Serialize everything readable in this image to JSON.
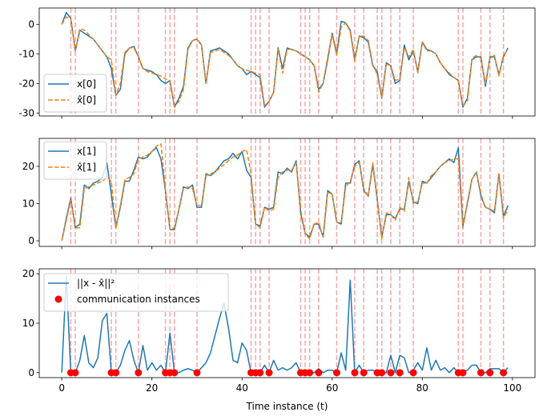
{
  "chart_data": [
    {
      "type": "line",
      "panel": "top",
      "xlim": [
        -5,
        105
      ],
      "ylim": [
        -31,
        5.5
      ],
      "yticks": [
        0,
        -10,
        -20,
        -30
      ],
      "xticks": [
        0,
        20,
        40,
        60,
        80,
        100
      ],
      "show_xticklabels": false,
      "legend": "lower-left",
      "series": [
        {
          "name": "x[0]",
          "style": "solid",
          "color": "#1f77b4",
          "x": [
            0,
            1,
            2,
            3,
            4,
            5,
            6,
            7,
            8,
            9,
            10,
            11,
            12,
            13,
            14,
            15,
            16,
            17,
            18,
            19,
            20,
            21,
            22,
            23,
            24,
            25,
            26,
            27,
            28,
            29,
            30,
            31,
            32,
            33,
            34,
            35,
            36,
            37,
            38,
            39,
            40,
            41,
            42,
            43,
            44,
            45,
            46,
            47,
            48,
            49,
            50,
            51,
            52,
            53,
            54,
            55,
            56,
            57,
            58,
            59,
            60,
            61,
            62,
            63,
            64,
            65,
            66,
            67,
            68,
            69,
            70,
            71,
            72,
            73,
            74,
            75,
            76,
            77,
            78,
            79,
            80,
            81,
            82,
            83,
            84,
            85,
            86,
            87,
            88,
            89,
            90,
            91,
            92,
            93,
            94,
            95,
            96,
            97,
            98,
            99
          ],
          "values": [
            0,
            4,
            2,
            -9,
            -2,
            -3,
            -4,
            -5,
            -7,
            -9,
            -11,
            -15,
            -24,
            -22,
            -10,
            -8,
            -7.5,
            -11,
            -15,
            -15.5,
            -16,
            -17,
            -19,
            -20,
            -19,
            -28,
            -25,
            -21,
            -8,
            -5.5,
            -5,
            -7,
            -20,
            -9,
            -8.5,
            -8,
            -9,
            -10,
            -12,
            -14,
            -15,
            -17,
            -16,
            -17,
            -18,
            -28,
            -26,
            -23,
            -8,
            -15,
            -8,
            -8.5,
            -9,
            -10,
            -11,
            -12,
            -14,
            -22,
            -20,
            -12,
            -3,
            -10,
            1,
            0.5,
            -2,
            -12,
            -4,
            -4.5,
            -6,
            -14,
            -16,
            -25,
            -13,
            -14,
            -20,
            -19,
            -7,
            -12,
            -9,
            -16,
            -6,
            -8.5,
            -9,
            -10,
            -13,
            -15,
            -17,
            -18,
            -19,
            -28,
            -25,
            -12,
            -11,
            -11,
            -21,
            -11,
            -11,
            -17,
            -11,
            -8
          ]
        },
        {
          "name": "x̂[0]",
          "style": "dashed",
          "color": "#ff7f0e",
          "x": [
            0,
            1,
            2,
            3,
            4,
            5,
            6,
            7,
            8,
            9,
            10,
            11,
            12,
            13,
            14,
            15,
            16,
            17,
            18,
            19,
            20,
            21,
            22,
            23,
            24,
            25,
            26,
            27,
            28,
            29,
            30,
            31,
            32,
            33,
            34,
            35,
            36,
            37,
            38,
            39,
            40,
            41,
            42,
            43,
            44,
            45,
            46,
            47,
            48,
            49,
            50,
            51,
            52,
            53,
            54,
            55,
            56,
            57,
            58,
            59,
            60,
            61,
            62,
            63,
            64,
            65,
            66,
            67,
            68,
            69,
            70,
            71,
            72,
            73,
            74,
            75,
            76,
            77,
            78,
            79,
            80,
            81,
            82,
            83,
            84,
            85,
            86,
            87,
            88,
            89,
            90,
            91,
            92,
            93,
            94,
            95,
            96,
            97,
            98,
            99
          ],
          "values": [
            0,
            2.5,
            2,
            -9,
            -1.5,
            -2,
            -3.5,
            -5,
            -7,
            -9,
            -11,
            -12,
            -24,
            -20,
            -9.5,
            -8,
            -8,
            -11,
            -15,
            -16,
            -16.5,
            -17,
            -17.5,
            -18.5,
            -19,
            -28,
            -26,
            -22,
            -8.5,
            -5.5,
            -5,
            -7,
            -20,
            -9.5,
            -9,
            -8.5,
            -9.5,
            -10.5,
            -12,
            -14,
            -15,
            -15.5,
            -16,
            -16.5,
            -17,
            -27.5,
            -26,
            -23,
            -8.5,
            -16.5,
            -8.5,
            -8.5,
            -9,
            -10,
            -11,
            -12,
            -14,
            -23,
            -20,
            -11,
            -3.5,
            -10.5,
            -1,
            0.5,
            -2.5,
            -12.5,
            -4,
            -4,
            -5.5,
            -13.5,
            -17,
            -25,
            -13.5,
            -14,
            -19,
            -18.5,
            -8,
            -11,
            -8.5,
            -16.5,
            -6,
            -9,
            -9,
            -10,
            -13,
            -15,
            -16.5,
            -18,
            -19,
            -27.5,
            -26,
            -11.5,
            -10.5,
            -11.5,
            -20,
            -11.5,
            -10.5,
            -17.5,
            -10.5,
            -8.5
          ]
        }
      ]
    },
    {
      "type": "line",
      "panel": "middle",
      "xlim": [
        -5,
        105
      ],
      "ylim": [
        -1.5,
        27.5
      ],
      "yticks": [
        0,
        10,
        20
      ],
      "xticks": [
        0,
        20,
        40,
        60,
        80,
        100
      ],
      "show_xticklabels": false,
      "legend": "top-left",
      "series": [
        {
          "name": "x[1]",
          "style": "solid",
          "color": "#1f77b4",
          "x": [
            0,
            1,
            2,
            3,
            4,
            5,
            6,
            7,
            8,
            9,
            10,
            11,
            12,
            13,
            14,
            15,
            16,
            17,
            18,
            19,
            20,
            21,
            22,
            23,
            24,
            25,
            26,
            27,
            28,
            29,
            30,
            31,
            32,
            33,
            34,
            35,
            36,
            37,
            38,
            39,
            40,
            41,
            42,
            43,
            44,
            45,
            46,
            47,
            48,
            49,
            50,
            51,
            52,
            53,
            54,
            55,
            56,
            57,
            58,
            59,
            60,
            61,
            62,
            63,
            64,
            65,
            66,
            67,
            68,
            69,
            70,
            71,
            72,
            73,
            74,
            75,
            76,
            77,
            78,
            79,
            80,
            81,
            82,
            83,
            84,
            85,
            86,
            87,
            88,
            89,
            90,
            91,
            92,
            93,
            94,
            95,
            96,
            97,
            98,
            99
          ],
          "values": [
            0,
            6,
            11.5,
            3.5,
            4.5,
            15,
            14,
            15.5,
            16,
            17,
            21,
            12.5,
            3.5,
            9,
            16,
            16,
            19,
            22.5,
            22,
            22.5,
            24,
            25,
            22,
            13.5,
            3,
            3,
            8.5,
            14.5,
            14,
            15,
            9,
            9,
            18,
            17.5,
            18.5,
            20,
            21.5,
            22,
            23.5,
            22,
            24,
            19,
            17,
            4.5,
            4,
            9,
            8.5,
            9,
            18.5,
            18,
            19.5,
            18.5,
            21.5,
            7.5,
            2,
            1,
            4.5,
            4.5,
            1,
            13.5,
            12.5,
            5,
            4.5,
            15.5,
            15.5,
            20.5,
            21.5,
            13.5,
            12,
            20.5,
            11,
            1,
            7,
            7,
            6,
            8.5,
            8.5,
            16,
            10.5,
            10,
            16,
            15.5,
            17,
            18.5,
            20,
            21,
            22,
            21,
            25,
            4,
            10,
            16.5,
            18.5,
            12,
            9,
            8.5,
            7.5,
            18,
            6.5,
            9.5
          ]
        },
        {
          "name": "x̂[1]",
          "style": "dashed",
          "color": "#ff7f0e",
          "x": [
            0,
            1,
            2,
            3,
            4,
            5,
            6,
            7,
            8,
            9,
            10,
            11,
            12,
            13,
            14,
            15,
            16,
            17,
            18,
            19,
            20,
            21,
            22,
            23,
            24,
            25,
            26,
            27,
            28,
            29,
            30,
            31,
            32,
            33,
            34,
            35,
            36,
            37,
            38,
            39,
            40,
            41,
            42,
            43,
            44,
            45,
            46,
            47,
            48,
            49,
            50,
            51,
            52,
            53,
            54,
            55,
            56,
            57,
            58,
            59,
            60,
            61,
            62,
            63,
            64,
            65,
            66,
            67,
            68,
            69,
            70,
            71,
            72,
            73,
            74,
            75,
            76,
            77,
            78,
            79,
            80,
            81,
            82,
            83,
            84,
            85,
            86,
            87,
            88,
            89,
            90,
            91,
            92,
            93,
            94,
            95,
            96,
            97,
            98,
            99
          ],
          "values": [
            0,
            5.5,
            11,
            3.5,
            3.5,
            14,
            14.5,
            15,
            15.5,
            16,
            17,
            16,
            3.5,
            9.5,
            16.5,
            17,
            18,
            22,
            22.5,
            23,
            24,
            25.5,
            26,
            14,
            3,
            3.5,
            8.5,
            14,
            14.5,
            14,
            9.5,
            9.5,
            17.5,
            18,
            18.5,
            19.5,
            20.5,
            21.5,
            22.5,
            23,
            24,
            24.5,
            18,
            4.5,
            3.5,
            9,
            8,
            8.5,
            17,
            18.5,
            19,
            19,
            21,
            8.5,
            2,
            0.5,
            4.5,
            5,
            1,
            13,
            12.5,
            5,
            5,
            14.5,
            16,
            20,
            21,
            14,
            12,
            21,
            11.5,
            0.5,
            7.5,
            7,
            5.5,
            9,
            8,
            17,
            10,
            10.5,
            15.5,
            15.5,
            17.5,
            18.5,
            20,
            21,
            21.5,
            22,
            22,
            3.5,
            10.5,
            16.5,
            18.5,
            12.5,
            9,
            8.5,
            8,
            18,
            6,
            8.5
          ]
        }
      ]
    },
    {
      "type": "line",
      "panel": "bottom",
      "xlim": [
        -5,
        105
      ],
      "ylim": [
        -1,
        21
      ],
      "yticks": [
        0,
        10,
        20
      ],
      "xticks": [
        0,
        20,
        40,
        60,
        80,
        100
      ],
      "show_xticklabels": true,
      "xlabel": "Time instance (t)",
      "legend": "top-left",
      "series": [
        {
          "name": "||x - x̂||²",
          "style": "solid",
          "color": "#1f77b4",
          "x": [
            0,
            1,
            2,
            3,
            4,
            5,
            6,
            7,
            8,
            9,
            10,
            11,
            12,
            13,
            14,
            15,
            16,
            17,
            18,
            19,
            20,
            21,
            22,
            23,
            24,
            25,
            26,
            27,
            28,
            29,
            30,
            31,
            32,
            33,
            34,
            35,
            36,
            37,
            38,
            39,
            40,
            41,
            42,
            43,
            44,
            45,
            46,
            47,
            48,
            49,
            50,
            51,
            52,
            53,
            54,
            55,
            56,
            57,
            58,
            59,
            60,
            61,
            62,
            63,
            64,
            65,
            66,
            67,
            68,
            69,
            70,
            71,
            72,
            73,
            74,
            75,
            76,
            77,
            78,
            79,
            80,
            81,
            82,
            83,
            84,
            85,
            86,
            87,
            88,
            89,
            90,
            91,
            92,
            93,
            94,
            95,
            96,
            97,
            98,
            99
          ],
          "values": [
            0,
            19.5,
            0,
            0,
            2.5,
            7.5,
            2,
            1,
            3,
            10.5,
            12,
            0,
            0,
            1.5,
            4.5,
            6.5,
            2.5,
            0,
            5.5,
            0.5,
            2,
            0.5,
            1.5,
            0,
            8,
            0,
            0,
            0.5,
            0.8,
            0.5,
            0,
            1,
            2,
            4,
            7.5,
            11,
            14,
            9,
            2.5,
            2,
            6,
            4.5,
            0,
            0,
            0,
            1.5,
            0,
            2.5,
            0.5,
            1,
            0.5,
            1,
            2,
            0,
            0,
            0,
            0,
            0.8,
            0,
            0.5,
            0.5,
            0,
            4,
            0.5,
            18.7,
            0,
            1.5,
            0,
            0.5,
            0.5,
            0,
            0,
            0,
            3.5,
            0,
            3.5,
            3,
            0,
            0.5,
            2,
            0.5,
            5,
            0.5,
            2.5,
            0.5,
            1,
            0,
            1,
            0,
            0,
            0.5,
            1.5,
            1.5,
            0,
            0,
            0.8,
            0.8,
            0.8,
            0,
            1
          ]
        },
        {
          "name": "communication instances",
          "style": "markers",
          "color": "#ff0000",
          "x": [
            2,
            3,
            11,
            12,
            17,
            23,
            24,
            25,
            30,
            42,
            43,
            44,
            46,
            53,
            54,
            55,
            57,
            61,
            65,
            67,
            70,
            71,
            73,
            75,
            78,
            88,
            89,
            93,
            95,
            98
          ],
          "values": [
            0,
            0,
            0,
            0,
            0,
            0,
            0,
            0,
            0,
            0,
            0,
            0,
            0,
            0,
            0,
            0,
            0,
            0,
            0,
            0,
            0,
            0,
            0,
            0,
            0,
            0,
            0,
            0,
            0,
            0
          ]
        }
      ]
    }
  ],
  "communication_times": [
    2,
    3,
    11,
    12,
    17,
    23,
    24,
    25,
    30,
    42,
    43,
    44,
    46,
    53,
    54,
    55,
    57,
    61,
    65,
    67,
    70,
    71,
    73,
    75,
    78,
    88,
    89,
    93,
    95,
    98
  ],
  "colors": {
    "series_solid": "#1f77b4",
    "series_dashed": "#ff7f0e",
    "markers": "#ff0000",
    "vlines": "#f4a6a6",
    "axes": "#000000"
  }
}
